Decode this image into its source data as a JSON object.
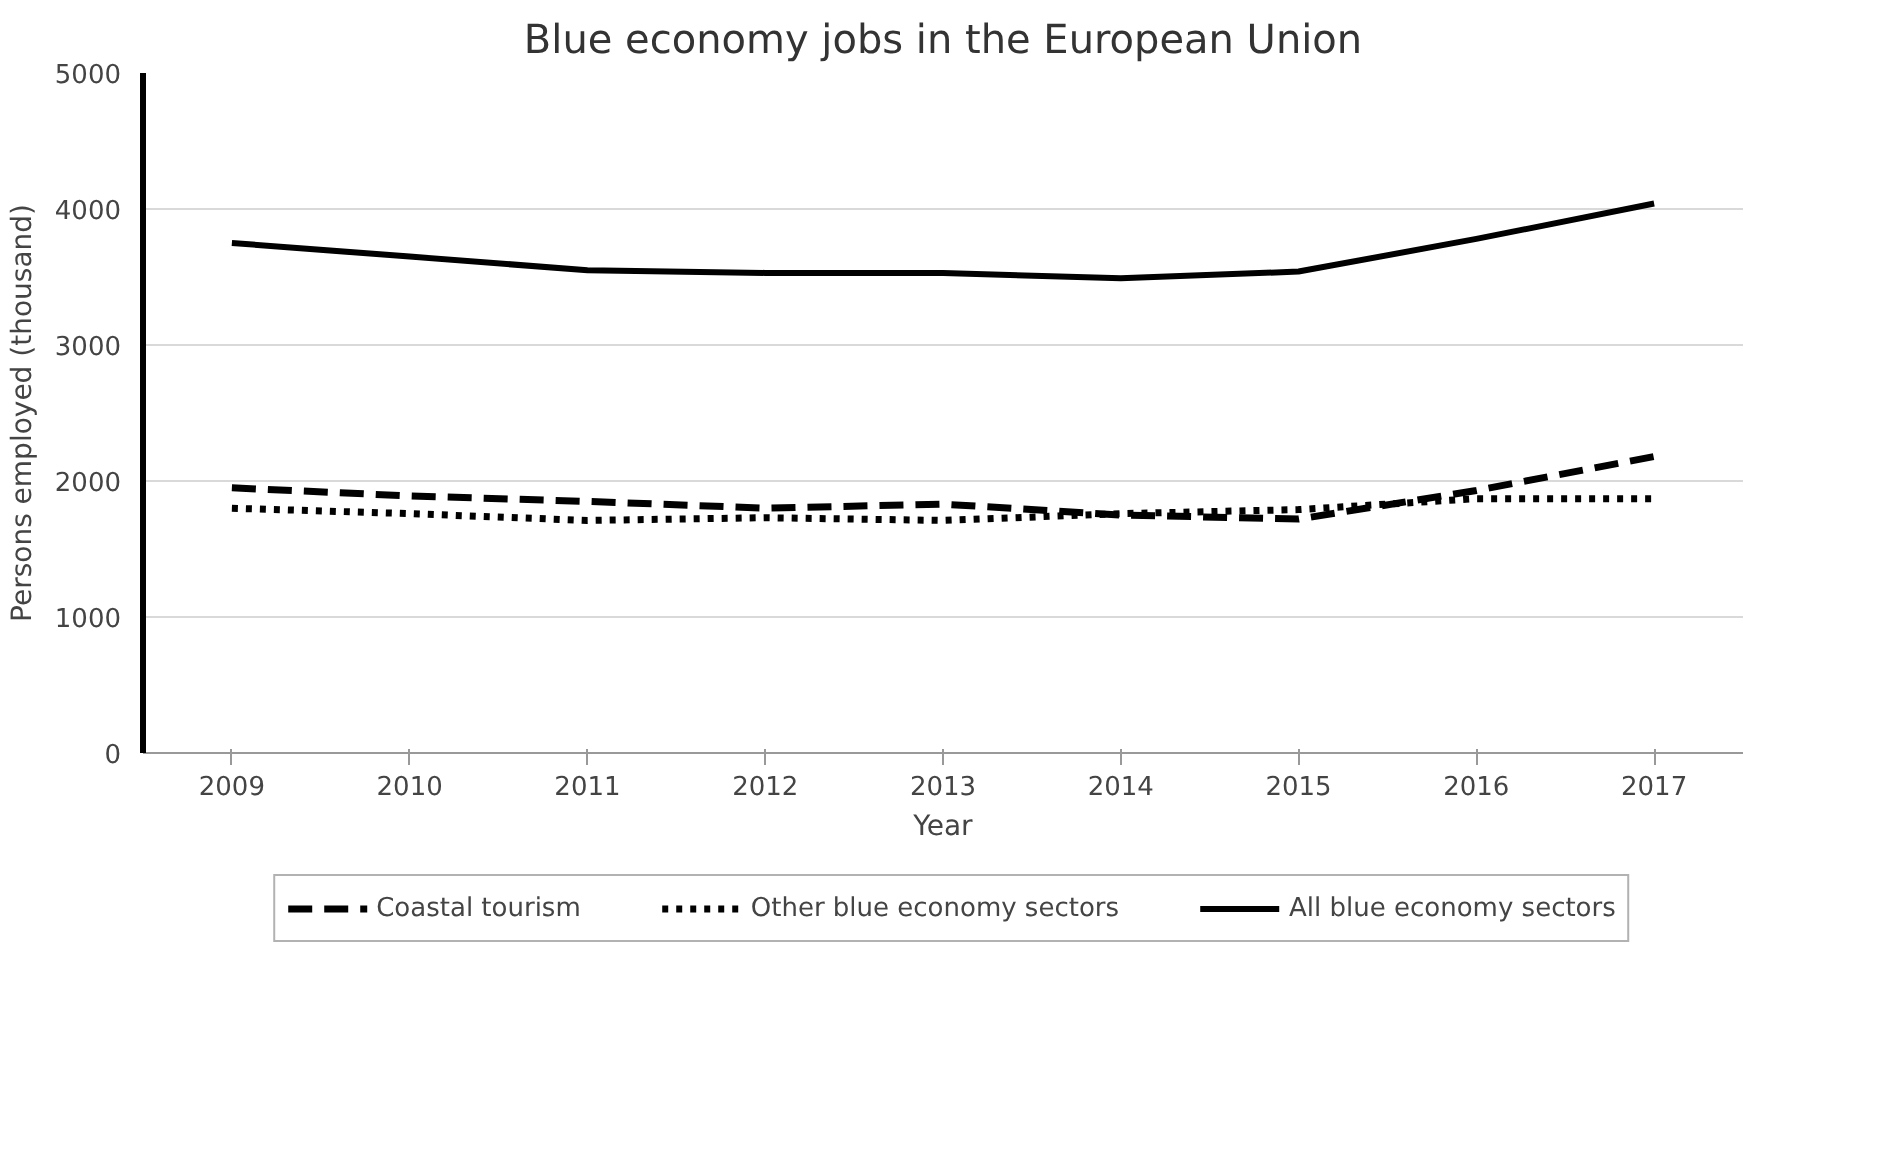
{
  "chart_data": {
    "type": "line",
    "title": "Blue economy jobs in the European Union",
    "xlabel": "Year",
    "ylabel": "Persons employed (thousand)",
    "categories": [
      "2009",
      "2010",
      "2011",
      "2012",
      "2013",
      "2014",
      "2015",
      "2016",
      "2017"
    ],
    "series": [
      {
        "name": "Coastal tourism",
        "color": "#000000",
        "line_style": "dashed",
        "values": [
          1950,
          1890,
          1850,
          1800,
          1830,
          1750,
          1720,
          1930,
          2180
        ]
      },
      {
        "name": "Other blue economy sectors",
        "color": "#000000",
        "line_style": "dotted",
        "values": [
          1800,
          1760,
          1710,
          1730,
          1710,
          1760,
          1790,
          1870,
          1870
        ]
      },
      {
        "name": "All blue economy sectors",
        "color": "#000000",
        "line_style": "solid",
        "values": [
          3750,
          3650,
          3550,
          3530,
          3530,
          3490,
          3540,
          3780,
          4040
        ]
      }
    ],
    "ylim": [
      0,
      5000
    ],
    "yticks": [
      0,
      1000,
      2000,
      3000,
      4000,
      5000
    ],
    "grid": "y",
    "legend": "bottom",
    "marker": "none"
  }
}
